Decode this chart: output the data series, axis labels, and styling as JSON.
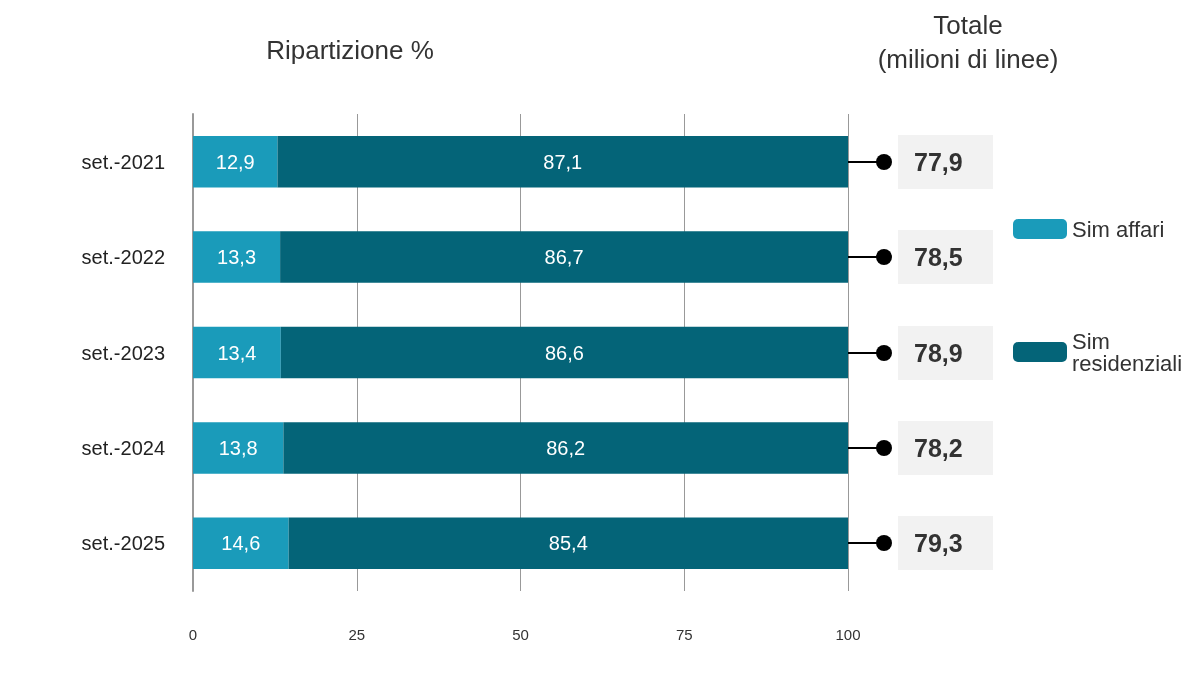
{
  "chart_data": {
    "type": "bar",
    "orientation": "horizontal",
    "stacked": true,
    "title": "Ripartizione %",
    "categories": [
      "set.-2021",
      "set.-2022",
      "set.-2023",
      "set.-2024",
      "set.-2025"
    ],
    "series": [
      {
        "name": "Sim affari",
        "color": "#1a9bba",
        "values": [
          12.9,
          13.3,
          13.4,
          13.8,
          14.6
        ],
        "value_labels": [
          "12,9",
          "13,3",
          "13,4",
          "13,8",
          "14,6"
        ]
      },
      {
        "name": "Sim residenziali",
        "color": "#046478",
        "values": [
          87.1,
          86.7,
          86.6,
          86.2,
          85.4
        ],
        "value_labels": [
          "87,1",
          "86,7",
          "86,6",
          "86,2",
          "85,4"
        ]
      }
    ],
    "xlim": [
      0,
      100
    ],
    "xticks": [
      0,
      25,
      50,
      75,
      100
    ],
    "grid": "x",
    "legend": "right",
    "annotations": [
      "Totale\n(milioni di linee)",
      "77,9",
      "78,5",
      "78,9",
      "78,2",
      "79,3"
    ]
  }
}
